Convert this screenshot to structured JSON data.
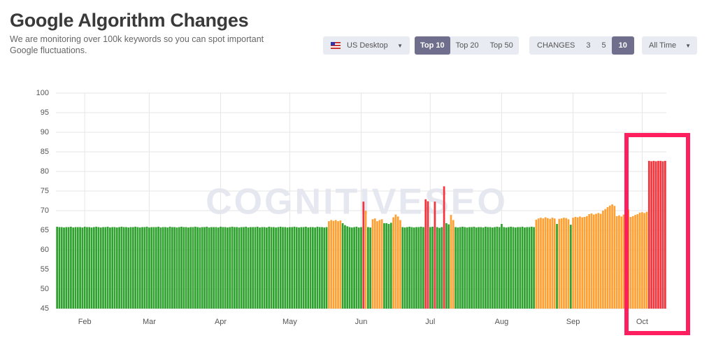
{
  "header": {
    "title": "Google Algorithm Changes",
    "subtitle": "We are monitoring over 100k keywords so you can spot important Google fluctuations."
  },
  "controls": {
    "device": "US Desktop",
    "top": [
      "Top 10",
      "Top 20",
      "Top 50"
    ],
    "changes_label": "CHANGES",
    "changes": [
      "3",
      "5",
      "10"
    ],
    "period": "All Time"
  },
  "watermark": "COGNITIVESEO",
  "chart_data": {
    "type": "bar",
    "categories": [
      null,
      null,
      null,
      null,
      null,
      null,
      null,
      null,
      null,
      null,
      null,
      null,
      "Feb",
      null,
      null,
      null,
      null,
      null,
      null,
      null,
      null,
      null,
      null,
      null,
      null,
      null,
      null,
      null,
      null,
      null,
      null,
      null,
      null,
      null,
      null,
      null,
      null,
      null,
      null,
      null,
      "Mar",
      null,
      null,
      null,
      null,
      null,
      null,
      null,
      null,
      null,
      null,
      null,
      null,
      null,
      null,
      null,
      null,
      null,
      null,
      null,
      null,
      null,
      null,
      null,
      null,
      null,
      null,
      null,
      null,
      null,
      null,
      "Apr",
      null,
      null,
      null,
      null,
      null,
      null,
      null,
      null,
      null,
      null,
      null,
      null,
      null,
      null,
      null,
      null,
      null,
      null,
      null,
      null,
      null,
      null,
      null,
      null,
      null,
      null,
      null,
      null,
      null,
      "May",
      null,
      null,
      null,
      null,
      null,
      null,
      null,
      null,
      null,
      null,
      null,
      null,
      null,
      null,
      null,
      null,
      null,
      null,
      null,
      null,
      null,
      null,
      null,
      null,
      null,
      null,
      null,
      null,
      null,
      null,
      "Jun",
      null,
      null,
      null,
      null,
      null,
      null,
      null,
      null,
      null,
      null,
      null,
      null,
      null,
      null,
      null,
      null,
      null,
      null,
      null,
      null,
      null,
      null,
      null,
      null,
      null,
      null,
      null,
      null,
      null,
      "Jul",
      null,
      null,
      null,
      null,
      null,
      null,
      null,
      null,
      null,
      null,
      null,
      null,
      null,
      null,
      null,
      null,
      null,
      null,
      null,
      null,
      null,
      null,
      null,
      null,
      null,
      null,
      null,
      null,
      null,
      null,
      "Aug",
      null,
      null,
      null,
      null,
      null,
      null,
      null,
      null,
      null,
      null,
      null,
      null,
      null,
      null,
      null,
      null,
      null,
      null,
      null,
      null,
      null,
      null,
      null,
      null,
      null,
      null,
      null,
      null,
      null,
      null,
      "Sep",
      null,
      null,
      null,
      null,
      null,
      null,
      null,
      null,
      null,
      null,
      null,
      null,
      null,
      null,
      null,
      null,
      null,
      null,
      null,
      null,
      null,
      null,
      null,
      null,
      null,
      null,
      null,
      null,
      null,
      "Oct",
      null,
      null,
      null,
      null,
      null,
      null,
      null,
      null,
      null,
      null
    ],
    "values": [
      65.9,
      65.8,
      65.8,
      65.7,
      65.8,
      65.8,
      65.9,
      65.7,
      65.8,
      65.8,
      65.8,
      65.7,
      65.9,
      65.8,
      65.8,
      65.7,
      65.8,
      65.9,
      65.8,
      65.7,
      65.8,
      65.8,
      65.9,
      65.7,
      65.8,
      65.8,
      65.7,
      65.8,
      65.9,
      65.8,
      65.8,
      65.7,
      65.8,
      65.8,
      65.9,
      65.8,
      65.7,
      65.8,
      65.8,
      65.9,
      65.7,
      65.8,
      65.8,
      65.8,
      65.9,
      65.7,
      65.8,
      65.8,
      65.7,
      65.9,
      65.8,
      65.8,
      65.7,
      65.8,
      65.9,
      65.8,
      65.8,
      65.7,
      65.8,
      65.8,
      65.9,
      65.8,
      65.7,
      65.8,
      65.8,
      65.9,
      65.7,
      65.8,
      65.8,
      65.8,
      65.7,
      65.9,
      65.8,
      65.8,
      65.7,
      65.8,
      65.9,
      65.8,
      65.8,
      65.7,
      65.8,
      65.8,
      65.9,
      65.7,
      65.8,
      65.8,
      65.8,
      65.9,
      65.7,
      65.8,
      65.8,
      65.7,
      65.9,
      65.8,
      65.8,
      65.7,
      65.8,
      65.9,
      65.8,
      65.8,
      65.7,
      65.8,
      65.8,
      65.9,
      65.8,
      65.7,
      65.8,
      65.8,
      65.9,
      65.7,
      65.8,
      65.8,
      65.7,
      65.9,
      65.8,
      65.8,
      65.7,
      65.8,
      67.3,
      67.6,
      67.4,
      67.6,
      67.3,
      67.5,
      66.8,
      66.3,
      66.0,
      65.8,
      65.7,
      65.8,
      65.9,
      65.7,
      65.8,
      72.3,
      70.0,
      65.8,
      65.7,
      67.8,
      68.0,
      67.3,
      67.6,
      67.8,
      66.8,
      66.8,
      66.6,
      66.9,
      68.3,
      69.0,
      68.5,
      67.6,
      65.8,
      65.7,
      65.8,
      65.9,
      65.8,
      65.7,
      65.8,
      65.8,
      65.9,
      65.8,
      72.9,
      72.4,
      65.8,
      65.9,
      72.3,
      65.8,
      65.6,
      65.8,
      76.2,
      66.8,
      66.5,
      68.9,
      67.6,
      65.8,
      65.7,
      65.8,
      65.9,
      65.8,
      65.7,
      65.8,
      65.8,
      65.9,
      65.7,
      65.8,
      65.8,
      65.7,
      65.9,
      65.8,
      65.8,
      65.7,
      65.8,
      65.9,
      65.8,
      66.6,
      65.8,
      65.7,
      65.8,
      65.9,
      65.8,
      65.7,
      65.8,
      65.8,
      65.9,
      65.7,
      65.8,
      65.8,
      65.9,
      65.8,
      67.7,
      68.0,
      68.2,
      68.0,
      68.3,
      68.1,
      67.9,
      68.2,
      68.0,
      66.6,
      67.9,
      68.0,
      68.2,
      68.1,
      67.8,
      66.4,
      68.2,
      68.4,
      68.3,
      68.5,
      68.3,
      68.4,
      68.6,
      69.1,
      69.3,
      69.0,
      69.2,
      69.4,
      69.2,
      70.0,
      70.4,
      70.9,
      71.3,
      71.6,
      71.2,
      68.6,
      68.8,
      68.5,
      69.0,
      70.6,
      70.3,
      68.4,
      68.6,
      68.9,
      69.1,
      69.5,
      69.6,
      69.4,
      69.7,
      82.7,
      82.6,
      82.7,
      82.6,
      82.7,
      82.7,
      82.6,
      82.7
    ],
    "colors": [
      "#2ea12e",
      "#ffa033",
      "#f4333b"
    ],
    "color_thresholds": [
      67,
      72
    ],
    "ylim": [
      45,
      100
    ],
    "yticks": [
      45,
      50,
      55,
      60,
      65,
      70,
      75,
      80,
      85,
      90,
      95,
      100
    ],
    "grid": true
  }
}
